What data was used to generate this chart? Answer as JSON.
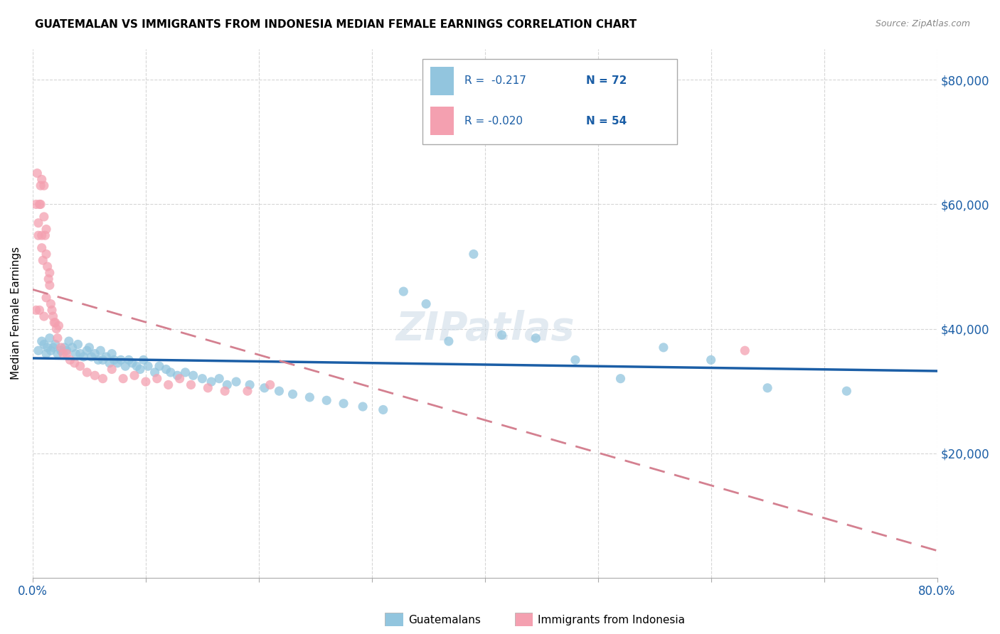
{
  "title": "GUATEMALAN VS IMMIGRANTS FROM INDONESIA MEDIAN FEMALE EARNINGS CORRELATION CHART",
  "source": "Source: ZipAtlas.com",
  "ylabel": "Median Female Earnings",
  "y_ticks": [
    20000,
    40000,
    60000,
    80000
  ],
  "y_tick_labels": [
    "$20,000",
    "$40,000",
    "$60,000",
    "$80,000"
  ],
  "x_min": 0.0,
  "x_max": 0.8,
  "y_min": 0,
  "y_max": 85000,
  "blue_color": "#92c5de",
  "pink_color": "#f4a0b0",
  "trendline_blue": "#1b5ea6",
  "trendline_pink": "#d48090",
  "label_blue": "Guatemalans",
  "label_pink": "Immigrants from Indonesia",
  "legend_blue_R": "R =  -0.217",
  "legend_blue_N": "N = 72",
  "legend_pink_R": "R = -0.020",
  "legend_pink_N": "N = 54",
  "blue_scatter_x": [
    0.005,
    0.008,
    0.01,
    0.012,
    0.013,
    0.015,
    0.016,
    0.018,
    0.02,
    0.022,
    0.025,
    0.028,
    0.03,
    0.032,
    0.035,
    0.038,
    0.04,
    0.042,
    0.045,
    0.048,
    0.05,
    0.052,
    0.055,
    0.058,
    0.06,
    0.062,
    0.065,
    0.068,
    0.07,
    0.072,
    0.075,
    0.078,
    0.082,
    0.085,
    0.088,
    0.092,
    0.095,
    0.098,
    0.102,
    0.108,
    0.112,
    0.118,
    0.122,
    0.128,
    0.135,
    0.142,
    0.15,
    0.158,
    0.165,
    0.172,
    0.18,
    0.192,
    0.205,
    0.218,
    0.23,
    0.245,
    0.26,
    0.275,
    0.292,
    0.31,
    0.328,
    0.348,
    0.368,
    0.39,
    0.415,
    0.445,
    0.48,
    0.52,
    0.558,
    0.6,
    0.65,
    0.72
  ],
  "blue_scatter_y": [
    36500,
    38000,
    37500,
    36000,
    37000,
    38500,
    36500,
    37000,
    37500,
    36000,
    36500,
    37000,
    36500,
    38000,
    37000,
    36000,
    37500,
    36000,
    35500,
    36500,
    37000,
    35500,
    36000,
    35000,
    36500,
    35000,
    35500,
    34500,
    36000,
    35000,
    34500,
    35000,
    34000,
    35000,
    34500,
    34000,
    33500,
    35000,
    34000,
    33000,
    34000,
    33500,
    33000,
    32500,
    33000,
    32500,
    32000,
    31500,
    32000,
    31000,
    31500,
    31000,
    30500,
    30000,
    29500,
    29000,
    28500,
    28000,
    27500,
    27000,
    46000,
    44000,
    38000,
    52000,
    39000,
    38500,
    35000,
    32000,
    37000,
    35000,
    30500,
    30000
  ],
  "pink_scatter_x": [
    0.003,
    0.005,
    0.006,
    0.007,
    0.008,
    0.008,
    0.009,
    0.01,
    0.01,
    0.011,
    0.012,
    0.012,
    0.013,
    0.014,
    0.015,
    0.015,
    0.016,
    0.017,
    0.018,
    0.019,
    0.02,
    0.021,
    0.022,
    0.023,
    0.025,
    0.027,
    0.03,
    0.033,
    0.037,
    0.042,
    0.048,
    0.055,
    0.062,
    0.07,
    0.08,
    0.09,
    0.1,
    0.11,
    0.12,
    0.13,
    0.14,
    0.155,
    0.17,
    0.19,
    0.21,
    0.012,
    0.005,
    0.007,
    0.008,
    0.01,
    0.003,
    0.004,
    0.63,
    0.006
  ],
  "pink_scatter_y": [
    43000,
    57000,
    60000,
    63000,
    55000,
    53000,
    51000,
    63000,
    58000,
    55000,
    52000,
    56000,
    50000,
    48000,
    47000,
    49000,
    44000,
    43000,
    42000,
    41000,
    41000,
    40000,
    38500,
    40500,
    37000,
    36000,
    36000,
    35000,
    34500,
    34000,
    33000,
    32500,
    32000,
    33500,
    32000,
    32500,
    31500,
    32000,
    31000,
    32000,
    31000,
    30500,
    30000,
    30000,
    31000,
    45000,
    55000,
    60000,
    64000,
    42000,
    60000,
    65000,
    36500,
    43000
  ]
}
